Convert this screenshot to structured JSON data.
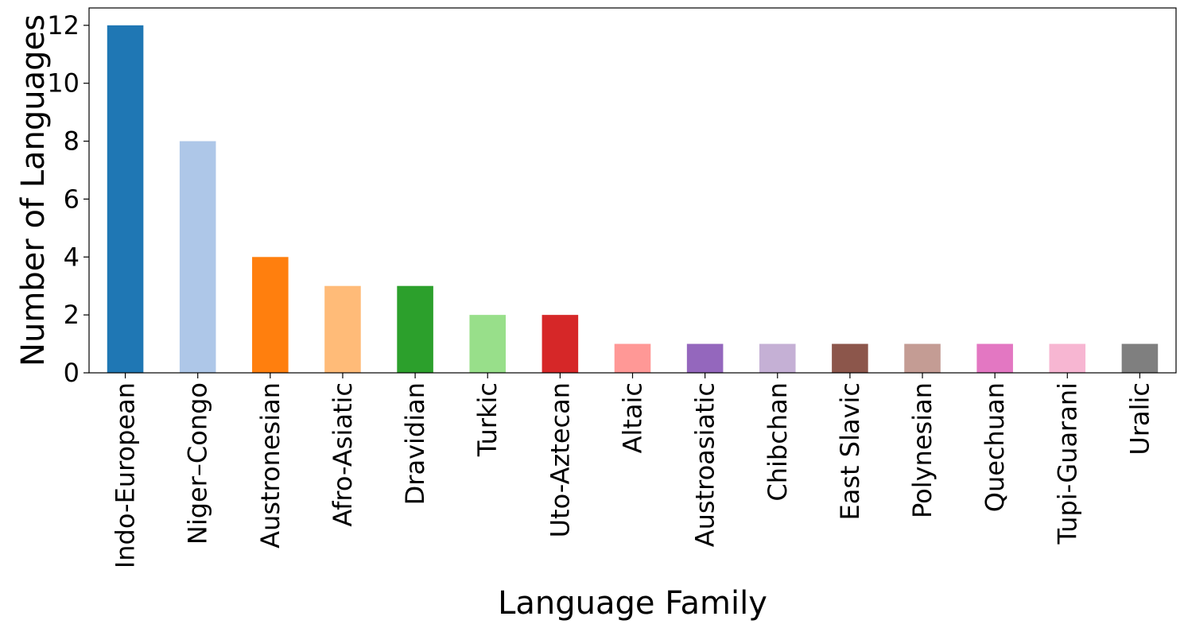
{
  "chart_data": {
    "type": "bar",
    "title": "",
    "xlabel": "Language Family",
    "ylabel": "Number of Languages",
    "categories": [
      "Indo-European",
      "Niger–Congo",
      "Austronesian",
      "Afro-Asiatic",
      "Dravidian",
      "Turkic",
      "Uto-Aztecan",
      "Altaic",
      "Austroasiatic",
      "Chibchan",
      "East Slavic",
      "Polynesian",
      "Quechuan",
      "Tupi-Guarani",
      "Uralic"
    ],
    "values": [
      12,
      8,
      4,
      3,
      3,
      2,
      2,
      1,
      1,
      1,
      1,
      1,
      1,
      1,
      1
    ],
    "colors": [
      "#1f77b4",
      "#aec7e8",
      "#ff7f0e",
      "#ffbb78",
      "#2ca02c",
      "#98df8a",
      "#d62728",
      "#ff9896",
      "#9467bd",
      "#c5b0d5",
      "#8c564b",
      "#c49c94",
      "#e377c2",
      "#f7b6d2",
      "#7f7f7f"
    ],
    "ylim": [
      0,
      12.6
    ],
    "yticks": [
      0,
      2,
      4,
      6,
      8,
      10,
      12
    ],
    "grid": false,
    "legend": "none"
  }
}
